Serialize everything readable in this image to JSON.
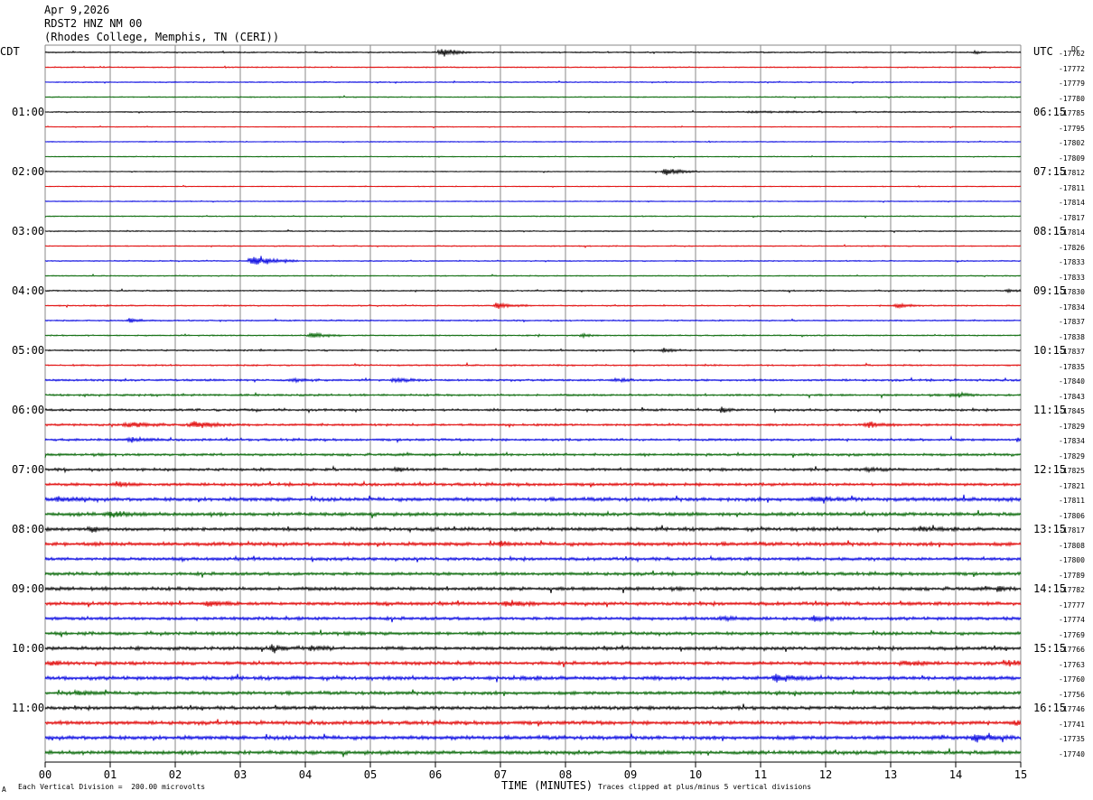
{
  "header": {
    "date": "Apr 9,2026",
    "station": "RDST2 HNZ NM 00",
    "location": "(Rhodes College, Memphis, TN (CERI))"
  },
  "left_tz": "CDT",
  "right_tz": "UTC",
  "dc_label": "DC",
  "footer": {
    "scale_note": "Each Vertical Division =  200.00 microvolts",
    "xlabel": "TIME (MINUTES)",
    "clip_note": "Traces clipped at plus/minus 5 vertical divisions",
    "corner_mark": "A"
  },
  "colors": {
    "trace_cycle": [
      "#000000",
      "#e00000",
      "#0000e0",
      "#006400"
    ],
    "grid": "#888888"
  },
  "chart_data": {
    "type": "line",
    "xlabel": "TIME (MINUTES)",
    "xlim": [
      0,
      15
    ],
    "x_ticks": [
      "00",
      "01",
      "02",
      "03",
      "04",
      "05",
      "06",
      "07",
      "08",
      "09",
      "10",
      "11",
      "12",
      "13",
      "14",
      "15"
    ],
    "row_count": 48,
    "left_time_labels": [
      {
        "row": 4,
        "text": "01:00"
      },
      {
        "row": 8,
        "text": "02:00"
      },
      {
        "row": 12,
        "text": "03:00"
      },
      {
        "row": 16,
        "text": "04:00"
      },
      {
        "row": 20,
        "text": "05:00"
      },
      {
        "row": 24,
        "text": "06:00"
      },
      {
        "row": 28,
        "text": "07:00"
      },
      {
        "row": 32,
        "text": "08:00"
      },
      {
        "row": 36,
        "text": "09:00"
      },
      {
        "row": 40,
        "text": "10:00"
      },
      {
        "row": 44,
        "text": "11:00"
      }
    ],
    "right_time_labels": [
      {
        "row": 4,
        "text": "06:15"
      },
      {
        "row": 8,
        "text": "07:15"
      },
      {
        "row": 12,
        "text": "08:15"
      },
      {
        "row": 16,
        "text": "09:15"
      },
      {
        "row": 20,
        "text": "10:15"
      },
      {
        "row": 24,
        "text": "11:15"
      },
      {
        "row": 28,
        "text": "12:15"
      },
      {
        "row": 32,
        "text": "13:15"
      },
      {
        "row": 36,
        "text": "14:15"
      },
      {
        "row": 40,
        "text": "15:15"
      },
      {
        "row": 44,
        "text": "16:15"
      }
    ],
    "dc_offsets": [
      "-17762",
      "-17772",
      "-17779",
      "-17780",
      "-17785",
      "-17795",
      "-17802",
      "-17809",
      "-17812",
      "-17811",
      "-17814",
      "-17817",
      "-17814",
      "-17826",
      "-17833",
      "-17833",
      "-17830",
      "-17834",
      "-17837",
      "-17838",
      "-17837",
      "-17835",
      "-17840",
      "-17843",
      "-17845",
      "-17829",
      "-17834",
      "-17829",
      "-17825",
      "-17821",
      "-17811",
      "-17806",
      "-17817",
      "-17808",
      "-17800",
      "-17789",
      "-17782",
      "-17777",
      "-17774",
      "-17769",
      "-17766",
      "-17763",
      "-17760",
      "-17756",
      "-17746",
      "-17741",
      "-17735",
      "-17740"
    ],
    "noise_level": [
      0.6,
      0.5,
      0.5,
      0.5,
      0.5,
      0.4,
      0.4,
      0.4,
      0.4,
      0.4,
      0.4,
      0.5,
      0.5,
      0.5,
      0.5,
      0.5,
      0.6,
      0.6,
      0.6,
      0.6,
      0.7,
      0.7,
      0.9,
      0.9,
      1.0,
      1.0,
      1.0,
      1.1,
      1.2,
      1.3,
      1.6,
      1.5,
      1.5,
      1.6,
      1.4,
      1.4,
      1.5,
      1.5,
      1.4,
      1.4,
      1.5,
      1.5,
      1.6,
      1.5,
      1.5,
      1.6,
      1.7,
      1.6
    ],
    "events": [
      {
        "row": 0,
        "minute": 6.1,
        "amp": 4.5,
        "dur": 0.3
      },
      {
        "row": 0,
        "minute": 14.3,
        "amp": 1.5,
        "dur": 0.15
      },
      {
        "row": 4,
        "minute": 11.0,
        "amp": 0.5,
        "dur": 3.0
      },
      {
        "row": 8,
        "minute": 9.55,
        "amp": 3.5,
        "dur": 0.35
      },
      {
        "row": 14,
        "minute": 3.2,
        "amp": 5.0,
        "dur": 0.5
      },
      {
        "row": 16,
        "minute": 14.8,
        "amp": 1.8,
        "dur": 0.2
      },
      {
        "row": 17,
        "minute": 6.95,
        "amp": 3.2,
        "dur": 0.35
      },
      {
        "row": 17,
        "minute": 13.1,
        "amp": 2.5,
        "dur": 0.3
      },
      {
        "row": 18,
        "minute": 1.3,
        "amp": 1.8,
        "dur": 0.3
      },
      {
        "row": 19,
        "minute": 4.1,
        "amp": 2.5,
        "dur": 0.35
      },
      {
        "row": 19,
        "minute": 8.25,
        "amp": 1.5,
        "dur": 0.2
      },
      {
        "row": 20,
        "minute": 9.5,
        "amp": 1.6,
        "dur": 0.3
      },
      {
        "row": 22,
        "minute": 3.8,
        "amp": 1.8,
        "dur": 0.3
      },
      {
        "row": 22,
        "minute": 5.4,
        "amp": 1.5,
        "dur": 0.4
      },
      {
        "row": 22,
        "minute": 8.8,
        "amp": 1.5,
        "dur": 0.3
      },
      {
        "row": 23,
        "minute": 13.95,
        "amp": 2.5,
        "dur": 0.3
      },
      {
        "row": 24,
        "minute": 10.4,
        "amp": 2.0,
        "dur": 0.2
      },
      {
        "row": 25,
        "minute": 1.3,
        "amp": 2.5,
        "dur": 0.5
      },
      {
        "row": 25,
        "minute": 2.3,
        "amp": 3.0,
        "dur": 0.5
      },
      {
        "row": 25,
        "minute": 12.65,
        "amp": 2.5,
        "dur": 0.35
      },
      {
        "row": 26,
        "minute": 1.3,
        "amp": 2.0,
        "dur": 0.4
      },
      {
        "row": 26,
        "minute": 14.95,
        "amp": 2.5,
        "dur": 0.1
      },
      {
        "row": 28,
        "minute": 5.4,
        "amp": 2.0,
        "dur": 0.2
      },
      {
        "row": 28,
        "minute": 12.65,
        "amp": 2.0,
        "dur": 0.25
      },
      {
        "row": 29,
        "minute": 1.1,
        "amp": 2.0,
        "dur": 0.3
      },
      {
        "row": 30,
        "minute": 0.2,
        "amp": 2.0,
        "dur": 0.3
      },
      {
        "row": 30,
        "minute": 11.8,
        "amp": 2.0,
        "dur": 0.4
      },
      {
        "row": 31,
        "minute": 1.0,
        "amp": 2.5,
        "dur": 0.4
      },
      {
        "row": 32,
        "minute": 0.7,
        "amp": 2.5,
        "dur": 0.2
      },
      {
        "row": 32,
        "minute": 13.45,
        "amp": 2.0,
        "dur": 0.2
      },
      {
        "row": 33,
        "minute": 7.0,
        "amp": 2.0,
        "dur": 0.2
      },
      {
        "row": 36,
        "minute": 14.65,
        "amp": 3.0,
        "dur": 0.15
      },
      {
        "row": 37,
        "minute": 2.5,
        "amp": 2.5,
        "dur": 0.35
      },
      {
        "row": 37,
        "minute": 7.1,
        "amp": 2.2,
        "dur": 0.4
      },
      {
        "row": 38,
        "minute": 10.4,
        "amp": 1.8,
        "dur": 0.3
      },
      {
        "row": 38,
        "minute": 11.8,
        "amp": 2.0,
        "dur": 0.3
      },
      {
        "row": 40,
        "minute": 3.5,
        "amp": 3.0,
        "dur": 0.3
      },
      {
        "row": 40,
        "minute": 4.1,
        "amp": 2.0,
        "dur": 0.3
      },
      {
        "row": 41,
        "minute": 0.1,
        "amp": 2.0,
        "dur": 0.2
      },
      {
        "row": 41,
        "minute": 13.2,
        "amp": 2.0,
        "dur": 0.3
      },
      {
        "row": 41,
        "minute": 14.8,
        "amp": 2.0,
        "dur": 0.3
      },
      {
        "row": 42,
        "minute": 11.25,
        "amp": 3.0,
        "dur": 0.4
      },
      {
        "row": 43,
        "minute": 0.5,
        "amp": 2.0,
        "dur": 0.3
      },
      {
        "row": 45,
        "minute": 14.9,
        "amp": 2.0,
        "dur": 0.2
      },
      {
        "row": 46,
        "minute": 14.3,
        "amp": 3.0,
        "dur": 0.35
      }
    ],
    "grid": true
  }
}
